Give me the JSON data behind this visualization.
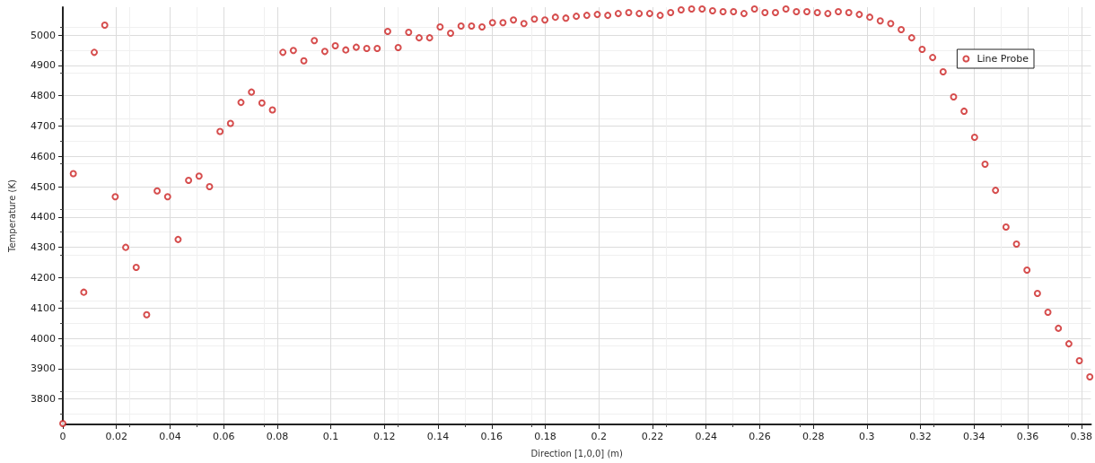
{
  "chart_data": {
    "type": "scatter",
    "xlabel": "Direction [1,0,0] (m)",
    "ylabel": "Temperature (K)",
    "x": [
      0,
      0.00391,
      0.00782,
      0.01173,
      0.01564,
      0.01955,
      0.02346,
      0.02737,
      0.03128,
      0.03519,
      0.0391,
      0.04301,
      0.04692,
      0.05083,
      0.05474,
      0.05865,
      0.06256,
      0.06647,
      0.07038,
      0.07429,
      0.0782,
      0.08211,
      0.08602,
      0.08993,
      0.09384,
      0.09775,
      0.10166,
      0.10557,
      0.10948,
      0.11339,
      0.1173,
      0.12121,
      0.12512,
      0.12903,
      0.13294,
      0.13685,
      0.14076,
      0.14467,
      0.14858,
      0.15249,
      0.1564,
      0.16031,
      0.16422,
      0.16813,
      0.17204,
      0.17595,
      0.17986,
      0.18377,
      0.18768,
      0.19159,
      0.1955,
      0.19941,
      0.20332,
      0.20723,
      0.21114,
      0.21505,
      0.21896,
      0.22287,
      0.22678,
      0.23069,
      0.2346,
      0.23851,
      0.24242,
      0.24633,
      0.25024,
      0.25415,
      0.25806,
      0.26197,
      0.26588,
      0.26979,
      0.2737,
      0.27761,
      0.28152,
      0.28543,
      0.28934,
      0.29325,
      0.29716,
      0.30107,
      0.30498,
      0.30889,
      0.3128,
      0.31671,
      0.32062,
      0.32453,
      0.32844,
      0.33235,
      0.33626,
      0.34017,
      0.34408,
      0.34799,
      0.3519,
      0.35581,
      0.35972,
      0.36363,
      0.36754,
      0.37145,
      0.37536,
      0.37927,
      0.38318
    ],
    "series": [
      {
        "name": "Line Probe",
        "color": "#cc2222",
        "values": [
          3719,
          4543,
          4152,
          4943,
          5033,
          4467,
          4300,
          4234,
          4078,
          4486,
          4467,
          4326,
          4521,
          4535,
          4500,
          4682,
          4709,
          4778,
          4812,
          4776,
          4753,
          4943,
          4949,
          4915,
          4982,
          4946,
          4965,
          4951,
          4960,
          4956,
          4956,
          5012,
          4959,
          5009,
          4991,
          4991,
          5027,
          5006,
          5030,
          5030,
          5027,
          5041,
          5041,
          5050,
          5038,
          5053,
          5050,
          5059,
          5056,
          5062,
          5065,
          5068,
          5065,
          5071,
          5074,
          5071,
          5071,
          5065,
          5074,
          5083,
          5086,
          5086,
          5080,
          5077,
          5077,
          5071,
          5086,
          5074,
          5074,
          5086,
          5077,
          5077,
          5074,
          5071,
          5077,
          5074,
          5068,
          5059,
          5047,
          5038,
          5018,
          4991,
          4953,
          4926,
          4879,
          4796,
          4749,
          4663,
          4574,
          4488,
          4367,
          4311,
          4225,
          4148,
          4086,
          4033,
          3982,
          3926,
          3873
        ]
      }
    ],
    "xlim": [
      0,
      0.3836
    ],
    "xticks": [
      0,
      0.02,
      0.04,
      0.06,
      0.08,
      0.1,
      0.12,
      0.14,
      0.16,
      0.18,
      0.2,
      0.22,
      0.24,
      0.26,
      0.28,
      0.3,
      0.32,
      0.34,
      0.36,
      0.38
    ],
    "ylim": [
      3716,
      5092
    ],
    "yticks": [
      3800,
      3900,
      4000,
      4100,
      4200,
      4300,
      4400,
      4500,
      4600,
      4700,
      4800,
      4900,
      5000
    ],
    "grid": true,
    "legend": "top right",
    "marker": "circle"
  }
}
